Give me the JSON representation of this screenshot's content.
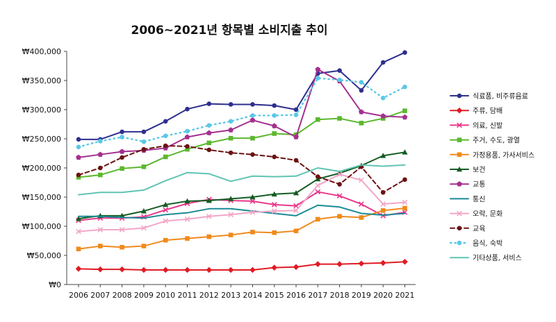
{
  "chart_data": {
    "type": "line",
    "title": "2006~2021년 항목별 소비지출 추이",
    "xlabel": "",
    "ylabel": "",
    "ylim": [
      0,
      400000
    ],
    "yticks": [
      0,
      50000,
      100000,
      150000,
      200000,
      250000,
      300000,
      350000,
      400000
    ],
    "ytick_labels": [
      "₩0",
      "₩50,000",
      "₩100,000",
      "₩150,000",
      "₩200,000",
      "₩250,000",
      "₩300,000",
      "₩350,000",
      "₩400,000"
    ],
    "categories": [
      "2006",
      "2007",
      "2008",
      "2009",
      "2010",
      "2011",
      "2012",
      "2013",
      "2014",
      "2015",
      "2016",
      "2017",
      "2018",
      "2019",
      "2020",
      "2021"
    ],
    "legend_position": "right",
    "grid": false,
    "series": [
      {
        "name": "식료품, 비주류음료",
        "color": "#2e2f8f",
        "marker": "circle",
        "dash": "solid",
        "values": [
          249000,
          249000,
          262000,
          262000,
          280000,
          301000,
          310000,
          309000,
          309000,
          307000,
          300000,
          362000,
          367000,
          333000,
          381000,
          398000
        ]
      },
      {
        "name": "주류, 담배",
        "color": "#e01b24",
        "marker": "diamond",
        "dash": "solid",
        "values": [
          27000,
          26000,
          26000,
          25000,
          25000,
          25000,
          25000,
          25000,
          25000,
          29000,
          30000,
          35000,
          35000,
          36000,
          37000,
          39000
        ]
      },
      {
        "name": "의료, 신발",
        "color": "#e8388a",
        "marker": "x",
        "dash": "solid",
        "values": [
          110000,
          114000,
          114000,
          116000,
          128000,
          139000,
          146000,
          144000,
          143000,
          137000,
          135000,
          159000,
          152000,
          138000,
          118000,
          124000
        ]
      },
      {
        "name": "주거, 수도, 광열",
        "color": "#5cb82e",
        "marker": "square",
        "dash": "solid",
        "values": [
          184000,
          188000,
          199000,
          202000,
          219000,
          232000,
          243000,
          251000,
          251000,
          259000,
          257000,
          283000,
          285000,
          277000,
          285000,
          298000
        ]
      },
      {
        "name": "가정용품, 가사서비스",
        "color": "#f08a1c",
        "marker": "square",
        "dash": "solid",
        "values": [
          61000,
          66000,
          64000,
          66000,
          76000,
          79000,
          82000,
          85000,
          90000,
          89000,
          92000,
          112000,
          117000,
          115000,
          127000,
          131000
        ]
      },
      {
        "name": "보건",
        "color": "#145c22",
        "marker": "triangle",
        "dash": "solid",
        "values": [
          113000,
          118000,
          118000,
          126000,
          137000,
          143000,
          144000,
          147000,
          150000,
          155000,
          157000,
          181000,
          191000,
          204000,
          221000,
          227000
        ]
      },
      {
        "name": "교통",
        "color": "#a3308f",
        "marker": "pentagon",
        "dash": "solid",
        "values": [
          218000,
          223000,
          228000,
          230000,
          234000,
          253000,
          260000,
          265000,
          282000,
          272000,
          253000,
          369000,
          349000,
          296000,
          289000,
          287000
        ]
      },
      {
        "name": "통신",
        "color": "#1a8a96",
        "marker": "none",
        "dash": "solid",
        "values": [
          117000,
          117000,
          115000,
          114000,
          120000,
          123000,
          130000,
          130000,
          126000,
          122000,
          118000,
          136000,
          133000,
          122000,
          119000,
          122000
        ]
      },
      {
        "name": "오락, 문화",
        "color": "#f2a6c8",
        "marker": "x",
        "dash": "solid",
        "values": [
          91000,
          94000,
          94000,
          97000,
          109000,
          112000,
          117000,
          120000,
          124000,
          126000,
          127000,
          170000,
          189000,
          179000,
          138000,
          141000
        ]
      },
      {
        "name": "교육",
        "color": "#6b1212",
        "marker": "circle",
        "dash": "dashed",
        "values": [
          188000,
          200000,
          218000,
          232000,
          238000,
          237000,
          231000,
          226000,
          223000,
          219000,
          213000,
          185000,
          172000,
          202000,
          158000,
          180000
        ]
      },
      {
        "name": "음식, 숙박",
        "color": "#5ac8e6",
        "marker": "circle",
        "dash": "dotted",
        "values": [
          236000,
          246000,
          253000,
          245000,
          255000,
          263000,
          273000,
          280000,
          290000,
          290000,
          291000,
          354000,
          351000,
          347000,
          320000,
          339000
        ]
      },
      {
        "name": "기타상품, 서비스",
        "color": "#5fc4b2",
        "marker": "none",
        "dash": "solid",
        "values": [
          154000,
          158000,
          158000,
          162000,
          178000,
          192000,
          190000,
          177000,
          186000,
          185000,
          186000,
          200000,
          194000,
          205000,
          203000,
          205000
        ]
      }
    ]
  }
}
